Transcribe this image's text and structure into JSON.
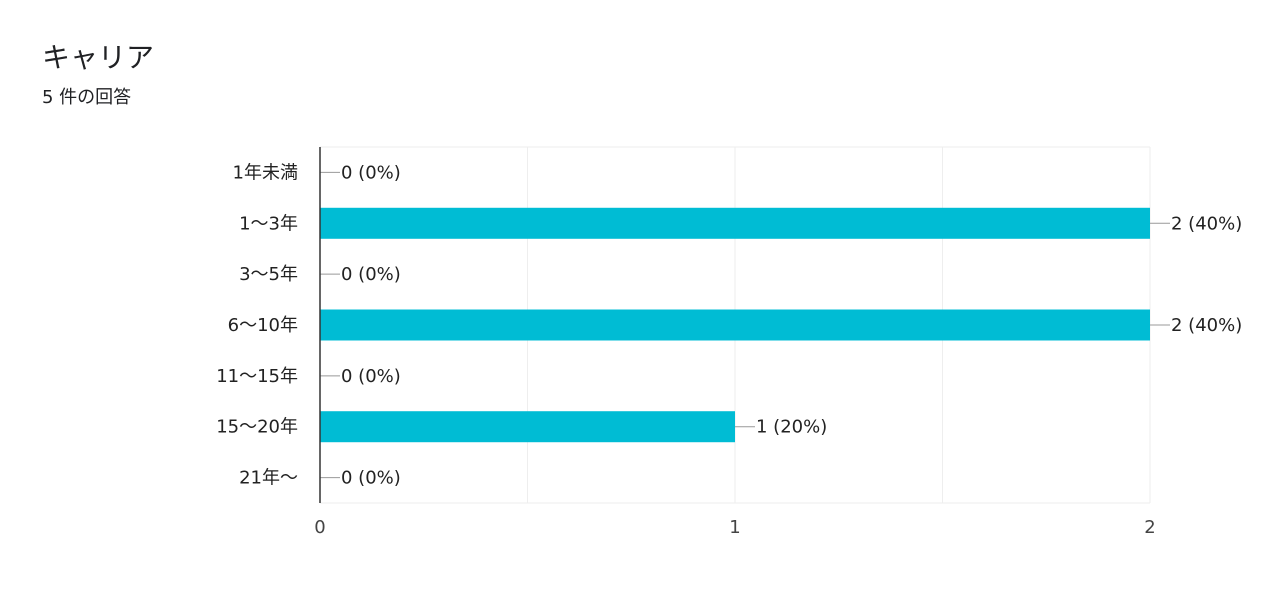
{
  "card": {
    "title": "キャリア",
    "response_count": "5 件の回答"
  },
  "chart_data": {
    "type": "bar",
    "orientation": "horizontal",
    "title": "キャリア",
    "categories": [
      "1年未満",
      "1〜3年",
      "3〜5年",
      "6〜10年",
      "11〜15年",
      "15〜20年",
      "21年〜"
    ],
    "values": [
      0,
      2,
      0,
      2,
      0,
      1,
      0
    ],
    "value_labels": [
      "0 (0%)",
      "2 (40%)",
      "0 (0%)",
      "2 (40%)",
      "0 (0%)",
      "1 (20%)",
      "0 (0%)"
    ],
    "xlim": [
      0,
      2
    ],
    "x_ticks": [
      0,
      1,
      2
    ],
    "x_tick_labels": [
      "0",
      "1",
      "2"
    ],
    "grid": true,
    "legend": "none",
    "colors": {
      "bar": "#00BCD4",
      "axis": "#333333",
      "grid": "#EEEEEE",
      "connector": "#999999"
    }
  }
}
